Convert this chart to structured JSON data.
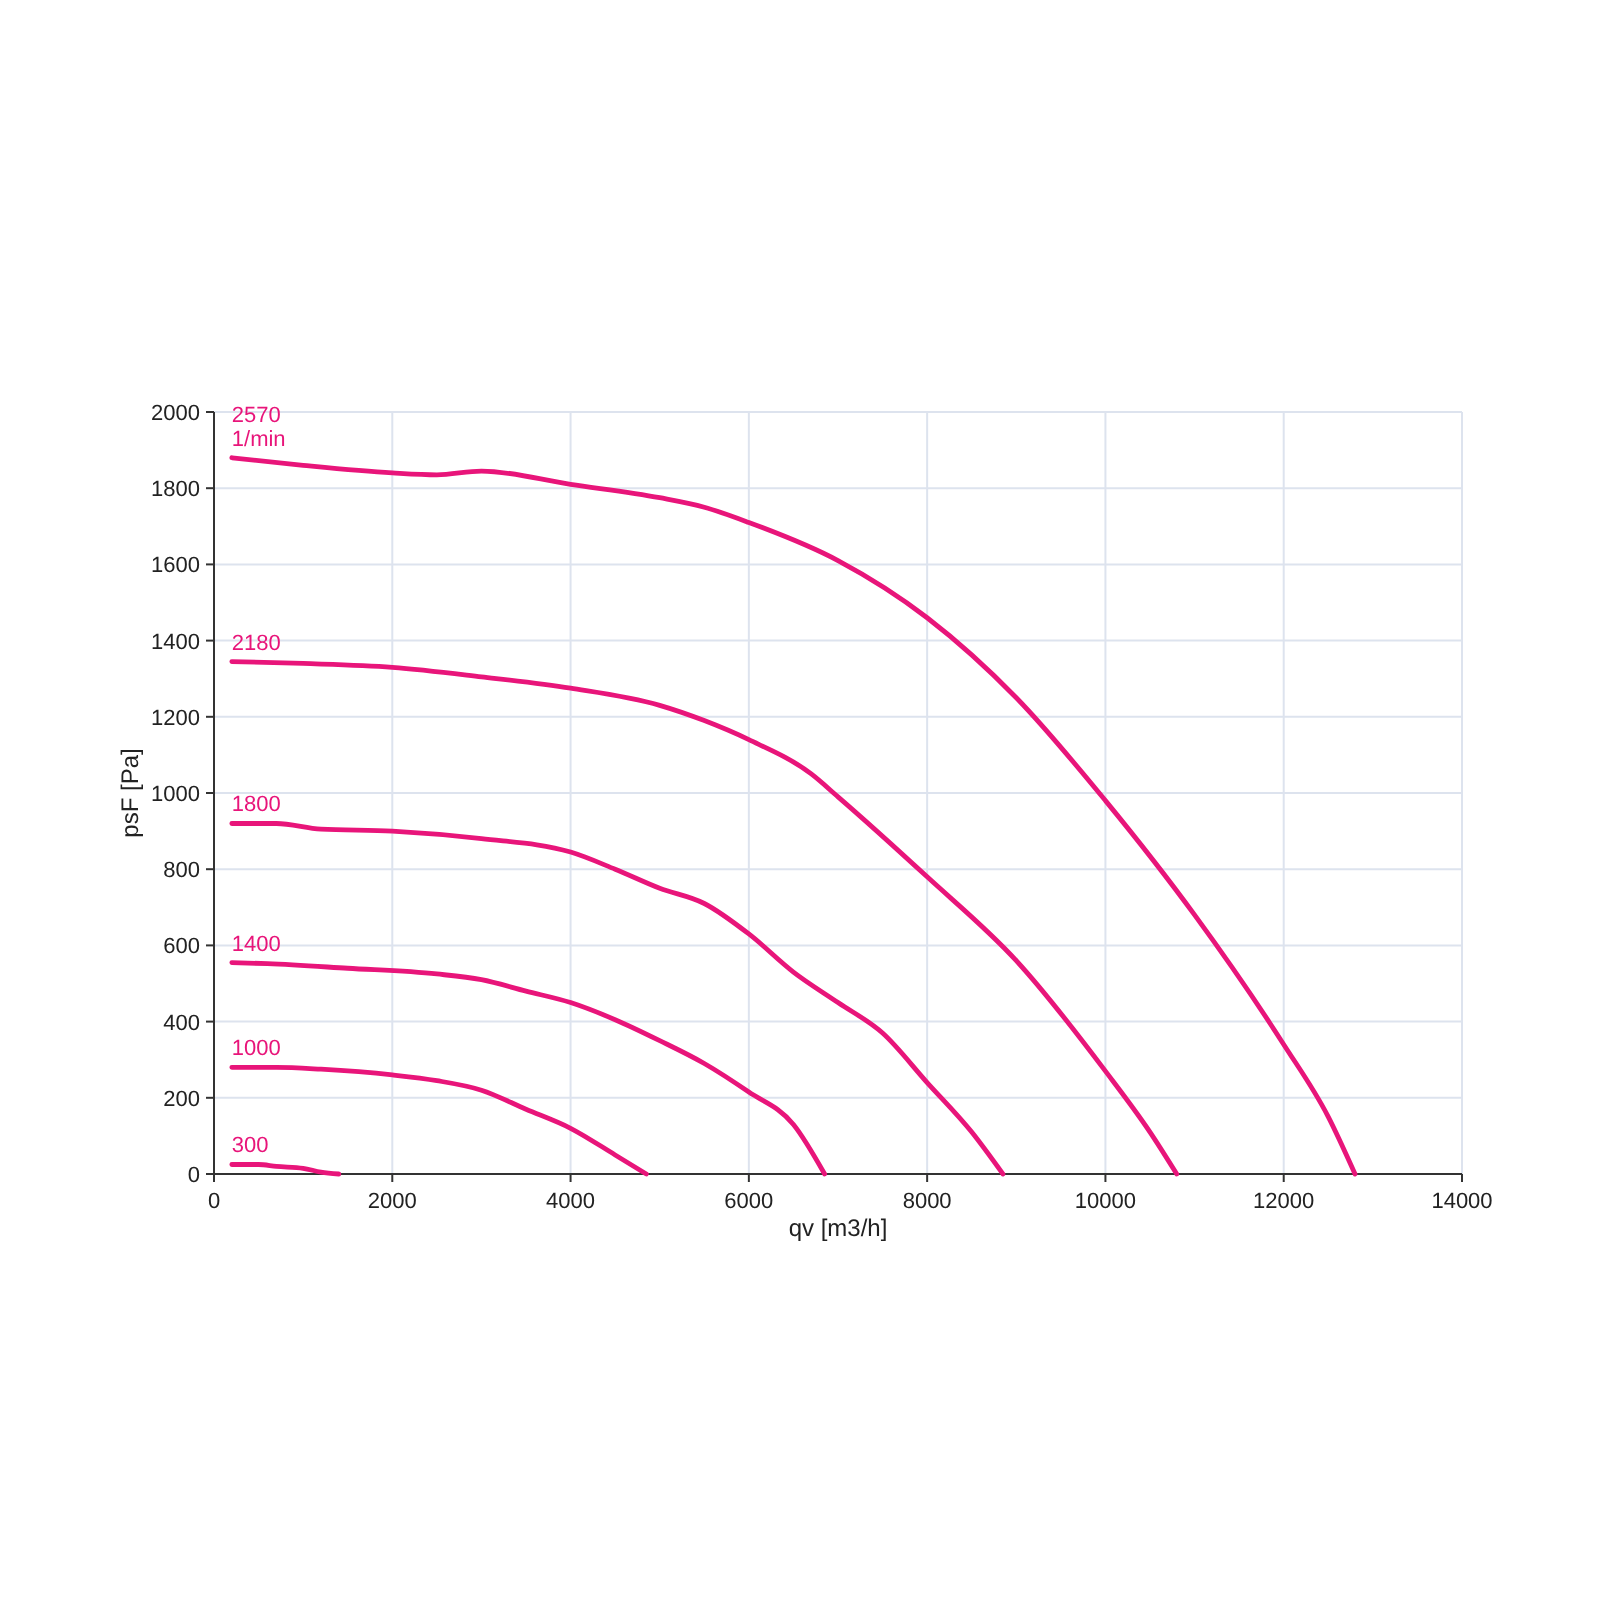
{
  "chart_data": {
    "type": "line",
    "xlabel": "qv [m3/h]",
    "ylabel": "psF [Pa]",
    "xlim": [
      0,
      14000
    ],
    "ylim": [
      0,
      2000
    ],
    "xticks": [
      0,
      2000,
      4000,
      6000,
      8000,
      10000,
      12000,
      14000
    ],
    "yticks": [
      0,
      200,
      400,
      600,
      800,
      1000,
      1200,
      1400,
      1600,
      1800,
      2000
    ],
    "grid": true,
    "marker": "none",
    "line_style": "solid",
    "annotations": [
      "1/min"
    ],
    "series": [
      {
        "name": "2570",
        "color": "#e8157a",
        "x": [
          200,
          1000,
          2000,
          2500,
          3000,
          4000,
          5000,
          5500,
          6000,
          7000,
          8000,
          9000,
          10000,
          11000,
          12000,
          12500,
          12800
        ],
        "values": [
          1880,
          1860,
          1840,
          1835,
          1845,
          1810,
          1775,
          1750,
          1710,
          1610,
          1460,
          1250,
          980,
          680,
          340,
          150,
          0
        ]
      },
      {
        "name": "2180",
        "color": "#e8157a",
        "x": [
          200,
          1000,
          2000,
          3000,
          4000,
          5000,
          5500,
          6000,
          6700,
          7000,
          8000,
          9000,
          10000,
          10500,
          10800
        ],
        "values": [
          1345,
          1340,
          1330,
          1305,
          1275,
          1230,
          1190,
          1140,
          1050,
          990,
          780,
          560,
          270,
          110,
          0
        ]
      },
      {
        "name": "1800",
        "color": "#e8157a",
        "x": [
          200,
          700,
          1200,
          2000,
          3000,
          4000,
          4500,
          5000,
          5500,
          6000,
          6500,
          7000,
          7500,
          8000,
          8500,
          8850
        ],
        "values": [
          920,
          920,
          905,
          900,
          880,
          845,
          800,
          750,
          710,
          630,
          530,
          450,
          370,
          240,
          110,
          0
        ]
      },
      {
        "name": "1400",
        "color": "#e8157a",
        "x": [
          200,
          600,
          1500,
          2500,
          3000,
          3500,
          4000,
          4500,
          5000,
          5500,
          6000,
          6500,
          6850
        ],
        "values": [
          555,
          552,
          540,
          525,
          510,
          480,
          450,
          405,
          350,
          290,
          215,
          130,
          0
        ]
      },
      {
        "name": "1000",
        "color": "#e8157a",
        "x": [
          200,
          700,
          1200,
          2000,
          2500,
          3000,
          3500,
          4000,
          4500,
          4850
        ],
        "values": [
          280,
          280,
          275,
          260,
          245,
          220,
          170,
          120,
          50,
          0
        ]
      },
      {
        "name": "300",
        "color": "#e8157a",
        "x": [
          200,
          500,
          700,
          1000,
          1200,
          1400
        ],
        "values": [
          25,
          25,
          20,
          15,
          5,
          0
        ]
      }
    ]
  }
}
